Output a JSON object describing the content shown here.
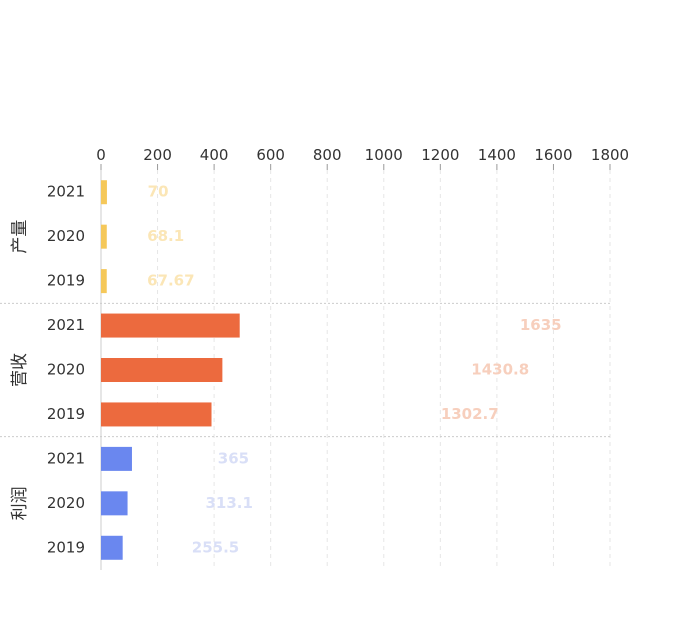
{
  "chart_data": {
    "type": "bar",
    "orientation": "horizontal",
    "x_ticks": [
      "0",
      "200",
      "400",
      "600",
      "800",
      "1000",
      "1200",
      "1400",
      "1600",
      "1800"
    ],
    "xlim": [
      0,
      1800
    ],
    "grid": "vertical dashed",
    "groups": [
      {
        "name": "产量",
        "color": "#f5c85a",
        "label_color": "#fbe6b6",
        "categories": [
          "2021",
          "2020",
          "2019"
        ],
        "values": [
          70,
          68.1,
          67.67
        ],
        "value_labels": [
          "70",
          "68.1",
          "67.67"
        ]
      },
      {
        "name": "营收",
        "color": "#ec6a3e",
        "label_color": "#f7cfbd",
        "categories": [
          "2021",
          "2020",
          "2019"
        ],
        "values": [
          1635,
          1430.8,
          1302.7
        ],
        "value_labels": [
          "1635",
          "1430.8",
          "1302.7"
        ]
      },
      {
        "name": "利润",
        "color": "#6a87ef",
        "label_color": "#d9dff7",
        "categories": [
          "2021",
          "2020",
          "2019"
        ],
        "values": [
          365,
          313.1,
          255.5
        ],
        "value_labels": [
          "365",
          "313.1",
          "255.5"
        ]
      }
    ]
  }
}
